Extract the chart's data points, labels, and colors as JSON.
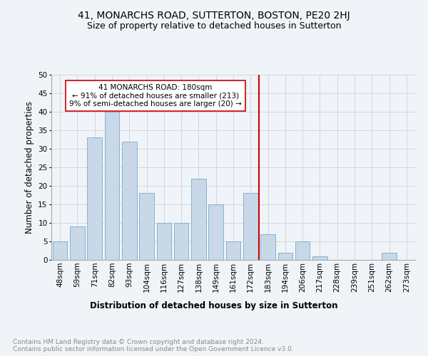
{
  "title": "41, MONARCHS ROAD, SUTTERTON, BOSTON, PE20 2HJ",
  "subtitle": "Size of property relative to detached houses in Sutterton",
  "xlabel": "Distribution of detached houses by size in Sutterton",
  "ylabel": "Number of detached properties",
  "footnote": "Contains HM Land Registry data © Crown copyright and database right 2024.\nContains public sector information licensed under the Open Government Licence v3.0.",
  "bar_labels": [
    "48sqm",
    "59sqm",
    "71sqm",
    "82sqm",
    "93sqm",
    "104sqm",
    "116sqm",
    "127sqm",
    "138sqm",
    "149sqm",
    "161sqm",
    "172sqm",
    "183sqm",
    "194sqm",
    "206sqm",
    "217sqm",
    "228sqm",
    "239sqm",
    "251sqm",
    "262sqm",
    "273sqm"
  ],
  "bar_values": [
    5,
    9,
    33,
    40,
    32,
    18,
    10,
    10,
    22,
    15,
    5,
    18,
    7,
    2,
    5,
    1,
    0,
    0,
    0,
    2,
    0
  ],
  "bar_color": "#c8d8e8",
  "bar_edge_color": "#7aaac8",
  "grid_color": "#d0d8e0",
  "vline_color": "#cc0000",
  "annotation_title": "41 MONARCHS ROAD: 180sqm",
  "annotation_line1": "← 91% of detached houses are smaller (213)",
  "annotation_line2": "9% of semi-detached houses are larger (20) →",
  "annotation_box_color": "#ffffff",
  "annotation_box_edge": "#cc0000",
  "ylim": [
    0,
    50
  ],
  "yticks": [
    0,
    5,
    10,
    15,
    20,
    25,
    30,
    35,
    40,
    45,
    50
  ],
  "title_fontsize": 10,
  "subtitle_fontsize": 9,
  "axis_label_fontsize": 8.5,
  "tick_fontsize": 7.5,
  "annotation_fontsize": 7.5,
  "footnote_fontsize": 6.5,
  "background_color": "#f0f4f8"
}
